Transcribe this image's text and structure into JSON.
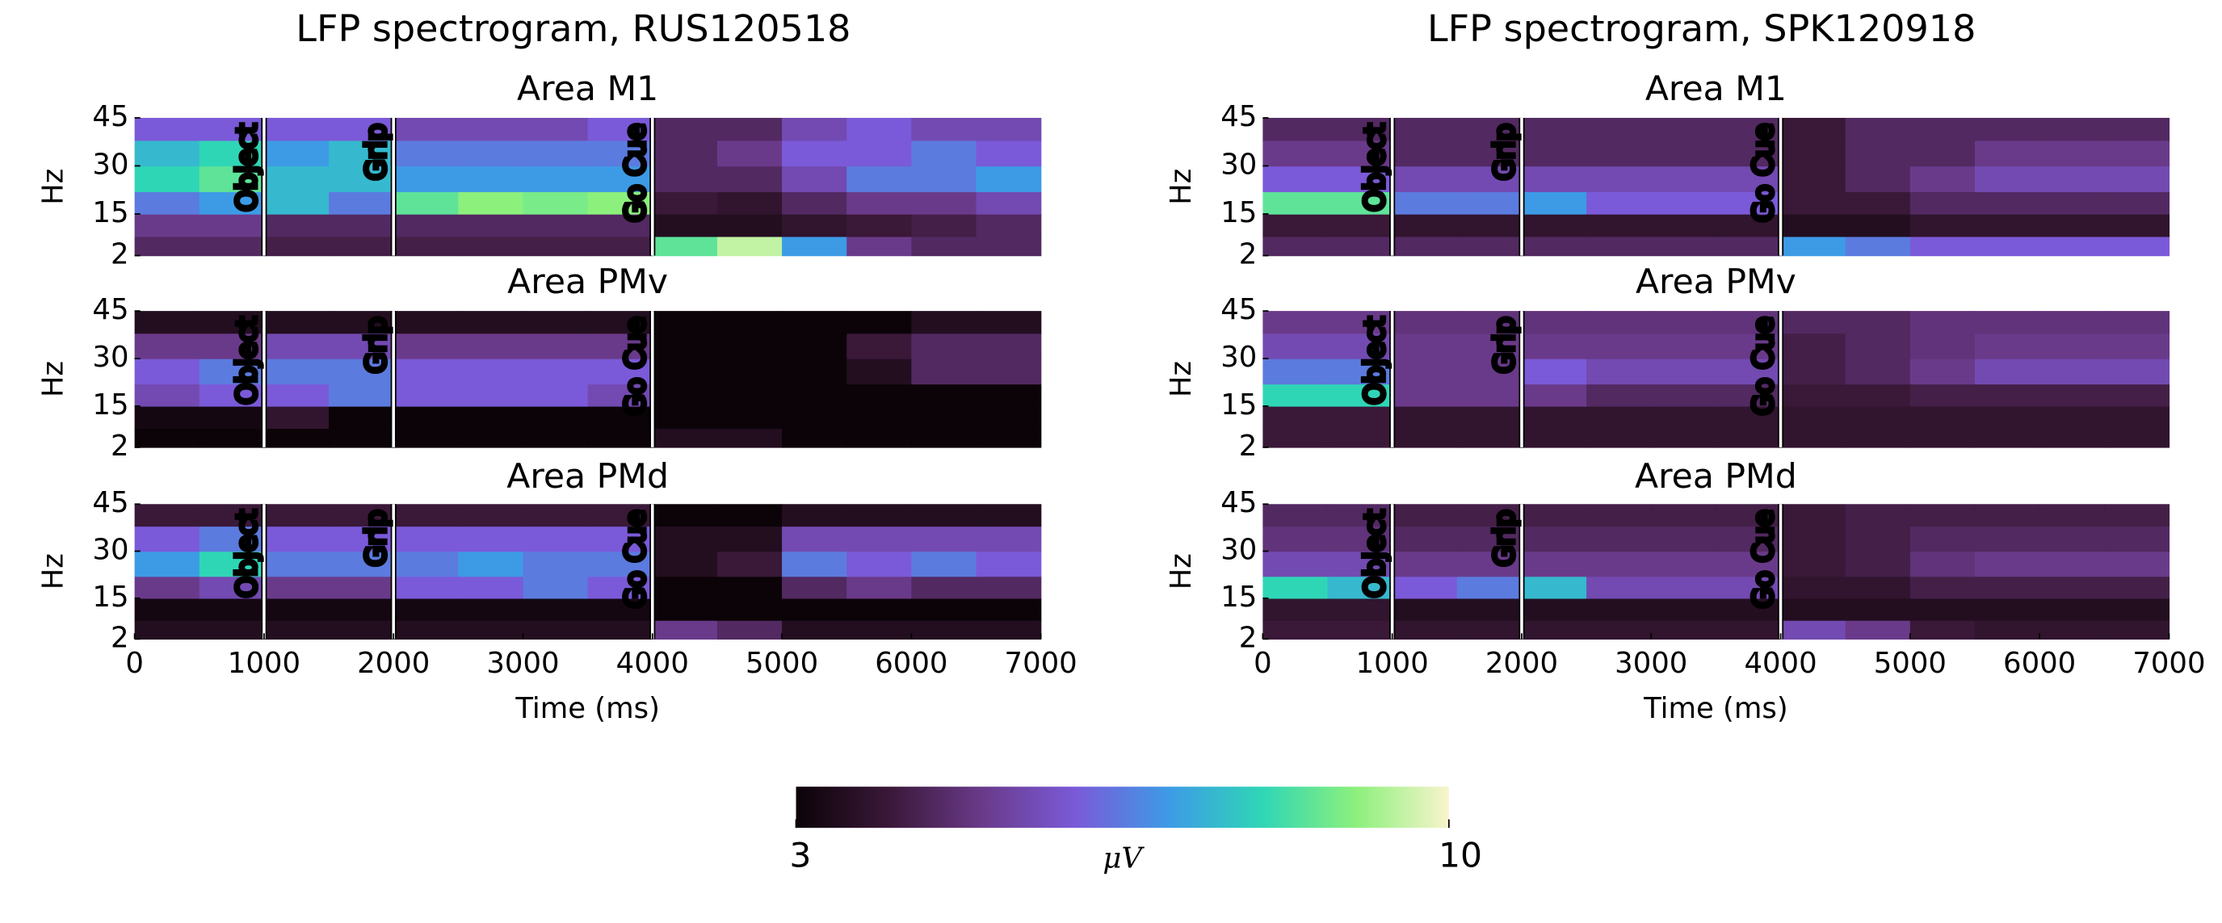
{
  "chart_data": [
    {
      "type": "heatmap",
      "title": "LFP spectrogram, RUS120518",
      "xlabel": "Time (ms)",
      "ylabel": "Hz",
      "xlim": [
        0,
        7000
      ],
      "xticks": [
        0,
        1000,
        2000,
        3000,
        4000,
        5000,
        6000,
        7000
      ],
      "ylim": [
        2,
        45
      ],
      "yticks": [
        2,
        15,
        30,
        45
      ],
      "x_bins": [
        0,
        500,
        1000,
        1500,
        2000,
        2500,
        3000,
        3500,
        4000,
        4500,
        5000,
        5500,
        6000,
        6500,
        7000
      ],
      "y_bins": [
        2,
        8,
        15,
        22,
        30,
        38,
        45
      ],
      "events": [
        {
          "x": 1000,
          "label": "Object"
        },
        {
          "x": 2000,
          "label": "Grip"
        },
        {
          "x": 4000,
          "label": "Go Cue"
        }
      ],
      "panels": [
        {
          "title": "Area M1",
          "values": [
            [
              4.5,
              4.5,
              4.2,
              4.2,
              4.2,
              4.2,
              4.2,
              4.2,
              8.5,
              9.5,
              7,
              5,
              4.5,
              4.5
            ],
            [
              5,
              5,
              4.5,
              4.5,
              4.5,
              4.5,
              4.5,
              4.5,
              3.5,
              3.5,
              3.8,
              4,
              4.2,
              4.5
            ],
            [
              6.5,
              7,
              7.5,
              6.5,
              8.5,
              9,
              8.8,
              9,
              4,
              3.8,
              4.5,
              5,
              5,
              5.5
            ],
            [
              8,
              8.5,
              7.5,
              7.5,
              7,
              7,
              7,
              7,
              4.5,
              4.5,
              5.5,
              6.5,
              6.5,
              7
            ],
            [
              7.5,
              8,
              7,
              7.5,
              6.5,
              6.5,
              6.5,
              6.5,
              4.5,
              5,
              6,
              6,
              6.5,
              6
            ],
            [
              6,
              6,
              6,
              6,
              5.5,
              5.5,
              5.5,
              6,
              4.5,
              4.5,
              5.5,
              6,
              5.5,
              5.5
            ]
          ]
        },
        {
          "title": "Area PMv",
          "values": [
            [
              3,
              3,
              3,
              3,
              3,
              3,
              3,
              3,
              3.5,
              3.5,
              3,
              3,
              3,
              3
            ],
            [
              3.2,
              3.2,
              3.8,
              3,
              3,
              3,
              3,
              3,
              3,
              3,
              3,
              3,
              3,
              3
            ],
            [
              5.5,
              6,
              6,
              6.5,
              6,
              6,
              6,
              5.5,
              3,
              3,
              3,
              3,
              3,
              3
            ],
            [
              6,
              6.5,
              6.5,
              6.5,
              6,
              6,
              6,
              6,
              3,
              3,
              3,
              3.5,
              4.5,
              4.5
            ],
            [
              5,
              5,
              5.5,
              5.5,
              5,
              5,
              5,
              5,
              3,
              3,
              3,
              4,
              4.5,
              4.5
            ],
            [
              3.5,
              3.5,
              3.5,
              3.5,
              3.5,
              3.5,
              3.5,
              3.5,
              3,
              3,
              3,
              3,
              3.5,
              3.5
            ]
          ]
        },
        {
          "title": "Area PMd",
          "values": [
            [
              3.5,
              3.5,
              3.5,
              3.5,
              3.5,
              3.5,
              3.5,
              3.5,
              5,
              4.5,
              3.5,
              3.5,
              3.5,
              3.5
            ],
            [
              3.2,
              3.2,
              3.2,
              3.2,
              3.2,
              3.2,
              3.2,
              3.2,
              3,
              3,
              3,
              3,
              3,
              3
            ],
            [
              5,
              5.5,
              5,
              5,
              6,
              6,
              6.5,
              6,
              3,
              3,
              4.5,
              5,
              4.5,
              4.5
            ],
            [
              7,
              8,
              6.5,
              6.5,
              6.5,
              7,
              6.5,
              6.5,
              3.5,
              4,
              6.5,
              6,
              6.5,
              6
            ],
            [
              6,
              6.5,
              6,
              6,
              6,
              6,
              6,
              6,
              3.5,
              3.5,
              5.5,
              5.5,
              5.5,
              5.5
            ],
            [
              4,
              4,
              4,
              4,
              4,
              4,
              4,
              4,
              3,
              3,
              3.5,
              3.5,
              3.5,
              3.5
            ]
          ]
        }
      ]
    },
    {
      "type": "heatmap",
      "title": "LFP spectrogram, SPK120918",
      "xlabel": "Time (ms)",
      "ylabel": "Hz",
      "xlim": [
        0,
        7000
      ],
      "xticks": [
        0,
        1000,
        2000,
        3000,
        4000,
        5000,
        6000,
        7000
      ],
      "ylim": [
        2,
        45
      ],
      "yticks": [
        2,
        15,
        30,
        45
      ],
      "x_bins": [
        0,
        500,
        1000,
        1500,
        2000,
        2500,
        3000,
        3500,
        4000,
        4500,
        5000,
        5500,
        6000,
        6500,
        7000
      ],
      "y_bins": [
        2,
        8,
        15,
        22,
        30,
        38,
        45
      ],
      "events": [
        {
          "x": 1000,
          "label": "Object"
        },
        {
          "x": 2000,
          "label": "Grip"
        },
        {
          "x": 4000,
          "label": "Go Cue"
        }
      ],
      "panels": [
        {
          "title": "Area M1",
          "values": [
            [
              4.5,
              4.5,
              4.5,
              4.5,
              4.5,
              4.5,
              4.5,
              4.5,
              7,
              6.5,
              6,
              6,
              6,
              6
            ],
            [
              4,
              4,
              3.8,
              3.8,
              3.8,
              3.8,
              3.8,
              3.8,
              3.5,
              3.5,
              3.8,
              3.8,
              3.8,
              3.8
            ],
            [
              8.5,
              8.5,
              6.5,
              6.5,
              7,
              6,
              6,
              6,
              4,
              4,
              4.5,
              4.5,
              4.5,
              4.5
            ],
            [
              6,
              6,
              5.5,
              5.5,
              5.5,
              5.5,
              5.5,
              5.5,
              4,
              4.5,
              5,
              5.5,
              5.5,
              5.5
            ],
            [
              5,
              5,
              4.5,
              4.5,
              4.5,
              4.5,
              4.5,
              4.5,
              4,
              4.5,
              4.5,
              5,
              5,
              5
            ],
            [
              4.5,
              4.5,
              4.5,
              4.5,
              4.5,
              4.5,
              4.5,
              4.5,
              4,
              4.5,
              4.5,
              4.5,
              4.5,
              4.5
            ]
          ]
        },
        {
          "title": "Area PMv",
          "values": [
            [
              4,
              4,
              3.8,
              3.8,
              3.8,
              3.8,
              3.8,
              3.8,
              3.8,
              3.8,
              3.8,
              3.8,
              3.8,
              3.8
            ],
            [
              4,
              4,
              3.8,
              3.8,
              3.8,
              3.8,
              3.8,
              3.8,
              3.8,
              3.8,
              3.8,
              3.8,
              3.8,
              3.8
            ],
            [
              8,
              8,
              5,
              5,
              5,
              4.5,
              4.5,
              4.5,
              4,
              4,
              4.2,
              4.2,
              4.2,
              4.2
            ],
            [
              6.5,
              6.5,
              5,
              5,
              6,
              5.5,
              5.5,
              5.5,
              4.2,
              4.5,
              5,
              5.5,
              5.5,
              5.5
            ],
            [
              5.5,
              5.5,
              5,
              5,
              5,
              5,
              5,
              5,
              4.2,
              4.5,
              4.8,
              5,
              5,
              5
            ],
            [
              5,
              5,
              4.8,
              4.8,
              4.8,
              4.8,
              4.8,
              4.8,
              4.5,
              4.5,
              4.8,
              4.8,
              4.8,
              4.8
            ]
          ]
        },
        {
          "title": "Area PMd",
          "values": [
            [
              4,
              4,
              3.8,
              3.8,
              3.8,
              3.8,
              3.8,
              3.8,
              5.5,
              5,
              4,
              3.8,
              3.8,
              3.8
            ],
            [
              3.8,
              3.8,
              3.5,
              3.5,
              3.5,
              3.5,
              3.5,
              3.5,
              3.5,
              3.5,
              3.5,
              3.5,
              3.5,
              3.5
            ],
            [
              8,
              7.5,
              6,
              6.5,
              7.5,
              5.5,
              5.5,
              5.5,
              3.8,
              3.8,
              4.2,
              4.2,
              4.2,
              4.2
            ],
            [
              5.5,
              5.5,
              5,
              5,
              5,
              5,
              5,
              5,
              4,
              4.2,
              4.8,
              5,
              5,
              5
            ],
            [
              4.8,
              4.8,
              4.5,
              4.5,
              4.5,
              4.5,
              4.5,
              4.5,
              4,
              4.2,
              4.5,
              4.5,
              4.5,
              4.5
            ],
            [
              4.5,
              4.5,
              4.2,
              4.2,
              4.2,
              4.2,
              4.2,
              4.2,
              4,
              4.2,
              4.2,
              4.2,
              4.2,
              4.2
            ]
          ]
        }
      ]
    }
  ],
  "colorbar": {
    "label": "μV",
    "lim": [
      3,
      10
    ],
    "ticks": [
      3,
      10
    ],
    "colormap": [
      "#0b0308",
      "#3a1838",
      "#6a3a8a",
      "#7a5ad8",
      "#3d9be6",
      "#2fd6b6",
      "#8cf07c",
      "#f8f4cc"
    ]
  }
}
